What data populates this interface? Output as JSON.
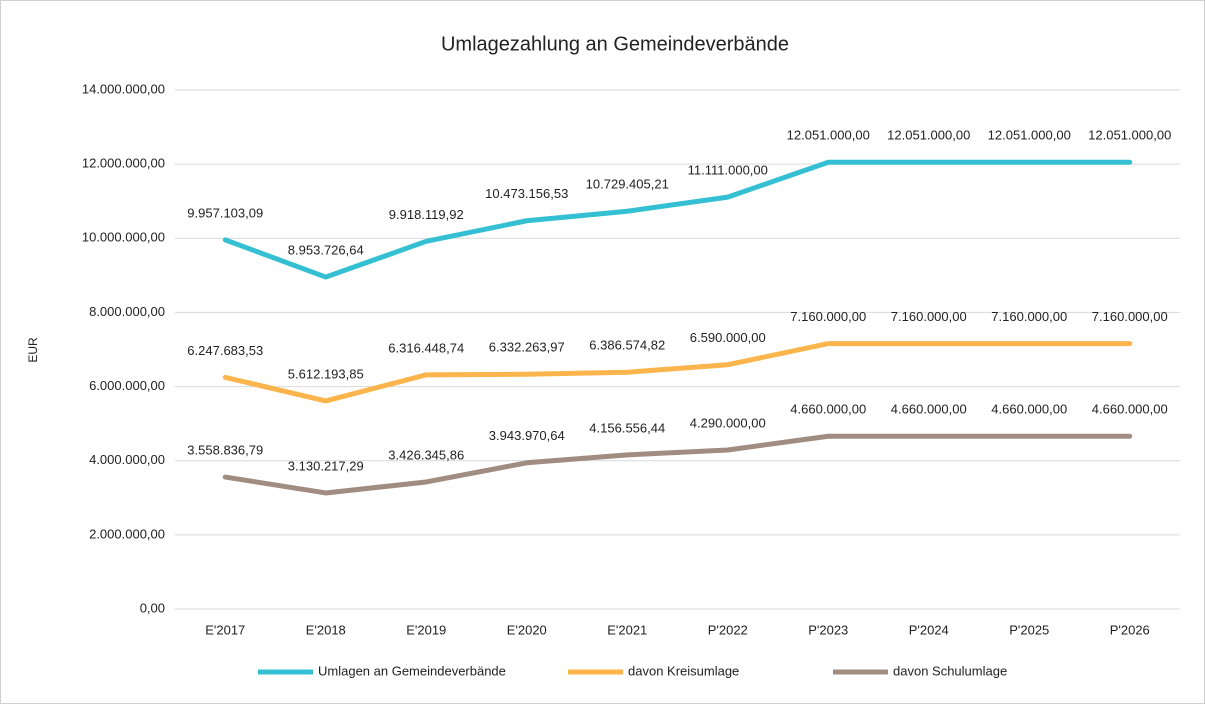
{
  "chart_data": {
    "type": "line",
    "title": "Umlagezahlung an Gemeindeverbände",
    "y_label": "EUR",
    "categories": [
      "E'2017",
      "E'2018",
      "E'2019",
      "E'2020",
      "E'2021",
      "P'2022",
      "P'2023",
      "P'2024",
      "P'2025",
      "P'2026"
    ],
    "series": [
      {
        "name": "Umlagen an Gemeindeverbände",
        "color": "#34c0d2",
        "values": [
          9957103.09,
          8953726.64,
          9918119.92,
          10473156.53,
          10729405.21,
          11111000.0,
          12051000.0,
          12051000.0,
          12051000.0,
          12051000.0
        ],
        "value_labels": [
          "9.957.103,09",
          "8.953.726,64",
          "9.918.119,92",
          "10.473.156,53",
          "10.729.405,21",
          "11.111.000,00",
          "12.051.000,00",
          "12.051.000,00",
          "12.051.000,00",
          "12.051.000,00"
        ]
      },
      {
        "name": "davon Kreisumlage",
        "color": "#fbb54c",
        "values": [
          6247683.53,
          5612193.85,
          6316448.74,
          6332263.97,
          6386574.82,
          6590000.0,
          7160000.0,
          7160000.0,
          7160000.0,
          7160000.0
        ],
        "value_labels": [
          "6.247.683,53",
          "5.612.193,85",
          "6.316.448,74",
          "6.332.263,97",
          "6.386.574,82",
          "6.590.000,00",
          "7.160.000,00",
          "7.160.000,00",
          "7.160.000,00",
          "7.160.000,00"
        ]
      },
      {
        "name": "davon Schulumlage",
        "color": "#a08c80",
        "values": [
          3558836.79,
          3130217.29,
          3426345.86,
          3943970.64,
          4156556.44,
          4290000.0,
          4660000.0,
          4660000.0,
          4660000.0,
          4660000.0
        ],
        "value_labels": [
          "3.558.836,79",
          "3.130.217,29",
          "3.426.345,86",
          "3.943.970,64",
          "4.156.556,44",
          "4.290.000,00",
          "4.660.000,00",
          "4.660.000,00",
          "4.660.000,00",
          "4.660.000,00"
        ]
      }
    ],
    "ylim": [
      0,
      14000000
    ],
    "yticks": [
      {
        "value": 0,
        "label": "0,00"
      },
      {
        "value": 2000000,
        "label": "2.000.000,00"
      },
      {
        "value": 4000000,
        "label": "4.000.000,00"
      },
      {
        "value": 6000000,
        "label": "6.000.000,00"
      },
      {
        "value": 8000000,
        "label": "8.000.000,00"
      },
      {
        "value": 10000000,
        "label": "10.000.000,00"
      },
      {
        "value": 12000000,
        "label": "12.000.000,00"
      },
      {
        "value": 14000000,
        "label": "14.000.000,00"
      }
    ],
    "grid": true,
    "legend": "bottom"
  }
}
